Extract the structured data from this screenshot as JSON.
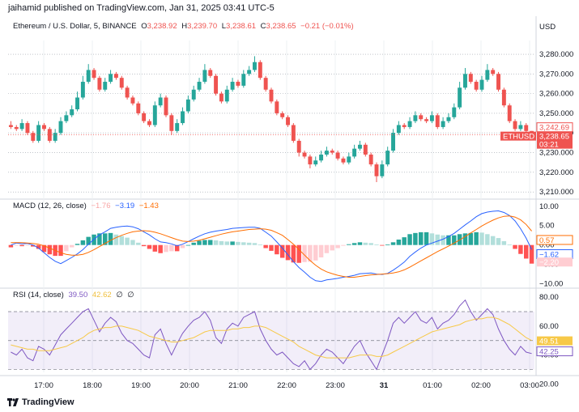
{
  "header": {
    "text": "jaihamid published on TradingView.com, Jan 31, 2025 03:41 UTC-5"
  },
  "footer": {
    "brand": "TradingView"
  },
  "price_panel": {
    "title": "Ethereum / U.S. Dollar, 5, BINANCE",
    "ohlc": [
      {
        "k": "O",
        "v": "3,238.92"
      },
      {
        "k": "H",
        "v": "3,239.70"
      },
      {
        "k": "L",
        "v": "3,238.61"
      },
      {
        "k": "C",
        "v": "3,238.65"
      }
    ],
    "change": "−0.21 (−0.01%)",
    "currency": "USD",
    "last_price_tag": "3,238.65",
    "symbol_tag": "ETHUSD",
    "countdown_tag": "03:21",
    "prev_close_tag": "3,242.69"
  },
  "macd_panel": {
    "title": "MACD (12, 26, close)",
    "values": [
      "−1.76",
      "−3.19",
      "−1.43"
    ],
    "tags": [
      "0.57",
      "−1.62",
      "−2.20"
    ]
  },
  "rsi_panel": {
    "title": "RSI (14, close)",
    "values": [
      "39.50",
      "42.62"
    ],
    "tags": [
      "49.51",
      "42.25"
    ],
    "icons": [
      "∅",
      "∅"
    ]
  },
  "colors": {
    "up": "#26a69a",
    "down": "#ef5350",
    "macd": "#2962ff",
    "signal": "#ff6d00",
    "rsi": "#7e57c2",
    "rsi_ma": "#f7c948",
    "hist_up_strong": "#26a69a",
    "hist_up_weak": "#b2dfdb",
    "hist_down_strong": "#ff5252",
    "hist_down_weak": "#ffcdd2"
  },
  "chart_data": [
    {
      "type": "candlestick",
      "title": "Ethereum / U.S. Dollar, 5, BINANCE",
      "ylabel": "USD",
      "ylim": [
        3208,
        3287
      ],
      "yticks": [
        3210,
        3220,
        3230,
        3240,
        3250,
        3260,
        3270,
        3280
      ],
      "xticks": [
        "17:00",
        "18:00",
        "19:00",
        "20:00",
        "21:00",
        "22:00",
        "23:00",
        "31",
        "01:00",
        "02:00",
        "03:00"
      ],
      "close": [
        3243,
        3242,
        3245,
        3240,
        3236,
        3244,
        3242,
        3236,
        3240,
        3246,
        3249,
        3252,
        3258,
        3266,
        3272,
        3268,
        3262,
        3266,
        3270,
        3268,
        3263,
        3258,
        3255,
        3250,
        3246,
        3244,
        3254,
        3258,
        3249,
        3241,
        3245,
        3251,
        3257,
        3262,
        3266,
        3272,
        3269,
        3260,
        3256,
        3262,
        3266,
        3264,
        3270,
        3272,
        3276,
        3268,
        3262,
        3256,
        3250,
        3248,
        3244,
        3236,
        3230,
        3228,
        3224,
        3226,
        3229,
        3231,
        3230,
        3227,
        3225,
        3228,
        3232,
        3234,
        3229,
        3224,
        3218,
        3224,
        3231,
        3240,
        3244,
        3243,
        3246,
        3249,
        3247,
        3246,
        3249,
        3243,
        3246,
        3248,
        3253,
        3263,
        3270,
        3266,
        3262,
        3267,
        3272,
        3270,
        3262,
        3254,
        3246,
        3242,
        3244,
        3241,
        3239
      ],
      "high_extra": [
        2,
        1,
        2,
        1,
        1,
        2,
        1,
        1,
        2,
        2,
        2,
        2,
        3,
        3,
        3,
        1,
        1,
        2,
        2,
        1,
        1,
        1,
        1,
        1,
        1,
        1,
        2,
        2,
        1,
        1,
        2,
        2,
        2,
        2,
        2,
        3,
        1,
        1,
        1,
        2,
        2,
        1,
        2,
        2,
        3,
        1,
        1,
        1,
        1,
        1,
        1,
        1,
        1,
        1,
        1,
        2,
        2,
        2,
        1,
        1,
        1,
        2,
        2,
        2,
        1,
        1,
        1,
        2,
        2,
        2,
        2,
        1,
        2,
        2,
        1,
        1,
        2,
        1,
        2,
        2,
        2,
        3,
        3,
        1,
        1,
        2,
        3,
        1,
        1,
        1,
        1,
        1,
        2,
        1,
        0
      ],
      "low_extra": [
        1,
        1,
        1,
        1,
        1,
        1,
        1,
        1,
        1,
        1,
        1,
        1,
        1,
        1,
        1,
        1,
        1,
        1,
        1,
        1,
        1,
        1,
        1,
        1,
        1,
        1,
        1,
        1,
        1,
        2,
        1,
        1,
        1,
        1,
        1,
        1,
        1,
        1,
        1,
        1,
        1,
        1,
        1,
        1,
        1,
        1,
        1,
        1,
        1,
        1,
        1,
        1,
        2,
        1,
        2,
        1,
        1,
        1,
        1,
        1,
        1,
        1,
        1,
        1,
        1,
        1,
        3,
        1,
        1,
        1,
        1,
        1,
        1,
        1,
        1,
        1,
        1,
        1,
        1,
        1,
        1,
        1,
        1,
        1,
        1,
        1,
        1,
        1,
        1,
        1,
        1,
        1,
        1,
        1,
        1
      ]
    },
    {
      "type": "line",
      "title": "MACD (12, 26, close)",
      "ylim": [
        -10.5,
        11
      ],
      "yticks": [
        10.0,
        5.0,
        0.0,
        -5.0,
        -10.0
      ],
      "series": [
        {
          "name": "MACD",
          "values": [
            0.0,
            0.5,
            0.3,
            0.4,
            0.0,
            -0.8,
            -2.0,
            -3.2,
            -4.2,
            -4.8,
            -4.0,
            -3.2,
            -2.3,
            -1.2,
            0.2,
            1.5,
            2.6,
            3.4,
            4.3,
            4.6,
            4.8,
            4.9,
            4.7,
            4.2,
            3.4,
            2.6,
            1.6,
            0.8,
            0.6,
            0.3,
            -0.2,
            0.2,
            0.9,
            1.6,
            2.3,
            2.9,
            3.3,
            3.6,
            3.8,
            4.0,
            4.3,
            4.4,
            4.5,
            4.6,
            4.6,
            4.3,
            3.3,
            2.3,
            0.8,
            -0.8,
            -2.5,
            -4.3,
            -5.8,
            -7.0,
            -8.3,
            -9.2,
            -9.4,
            -9.0,
            -8.8,
            -8.6,
            -8.3,
            -8.1,
            -7.8,
            -7.4,
            -7.3,
            -7.2,
            -7.5,
            -7.6,
            -7.3,
            -6.5,
            -5.5,
            -4.4,
            -2.9,
            -1.8,
            -0.8,
            0.0,
            0.5,
            1.0,
            1.5,
            2.2,
            3.0,
            4.1,
            5.2,
            6.2,
            7.3,
            8.1,
            8.5,
            8.7,
            8.8,
            8.4,
            7.6,
            6.2,
            4.2,
            1.8,
            -1.2
          ]
        },
        {
          "name": "Signal",
          "values": [
            0.6,
            0.6,
            0.6,
            0.5,
            0.4,
            0.2,
            -0.2,
            -0.8,
            -1.4,
            -2.0,
            -2.4,
            -2.6,
            -2.6,
            -2.4,
            -1.9,
            -1.2,
            -0.4,
            0.4,
            1.2,
            1.9,
            2.5,
            3.0,
            3.4,
            3.6,
            3.7,
            3.6,
            3.3,
            2.9,
            2.4,
            1.9,
            1.4,
            1.0,
            0.9,
            1.0,
            1.2,
            1.6,
            2.0,
            2.4,
            2.8,
            3.1,
            3.4,
            3.6,
            3.8,
            4.0,
            4.1,
            4.2,
            4.1,
            3.8,
            3.2,
            2.5,
            1.4,
            0.2,
            -1.2,
            -2.6,
            -4.0,
            -5.2,
            -6.2,
            -6.9,
            -7.4,
            -7.8,
            -8.1,
            -8.3,
            -8.3,
            -8.1,
            -7.9,
            -7.7,
            -7.6,
            -7.5,
            -7.4,
            -7.2,
            -6.9,
            -6.4,
            -5.7,
            -4.9,
            -4.1,
            -3.3,
            -2.5,
            -1.7,
            -1.0,
            -0.3,
            0.5,
            1.3,
            2.2,
            3.1,
            4.0,
            4.9,
            5.7,
            6.4,
            7.0,
            7.4,
            7.5,
            7.2,
            6.5,
            5.3,
            3.6
          ]
        }
      ],
      "histogram": [
        -0.6,
        -0.1,
        -0.3,
        -0.1,
        -0.4,
        -1.0,
        -1.8,
        -2.4,
        -2.8,
        -2.8,
        -1.6,
        -0.6,
        0.3,
        1.2,
        2.1,
        2.7,
        3.0,
        3.0,
        3.1,
        2.7,
        2.3,
        1.9,
        1.3,
        0.6,
        -0.3,
        -1.0,
        -1.7,
        -2.1,
        -1.8,
        -1.6,
        -1.6,
        -0.8,
        0.0,
        0.6,
        1.1,
        1.3,
        1.3,
        1.2,
        1.0,
        0.9,
        0.9,
        0.8,
        0.7,
        0.6,
        0.5,
        0.1,
        -0.8,
        -1.5,
        -2.4,
        -3.3,
        -3.9,
        -4.5,
        -4.6,
        -4.4,
        -4.3,
        -4.0,
        -3.2,
        -2.1,
        -1.4,
        -0.8,
        -0.2,
        0.2,
        0.5,
        0.7,
        0.6,
        0.5,
        0.1,
        -0.1,
        0.1,
        0.7,
        1.4,
        2.0,
        2.8,
        3.1,
        3.3,
        3.3,
        3.0,
        2.7,
        2.5,
        2.5,
        2.5,
        2.8,
        3.0,
        3.1,
        3.3,
        3.2,
        2.8,
        2.3,
        1.8,
        1.0,
        0.1,
        -1.0,
        -2.3,
        -3.5,
        -4.8
      ]
    },
    {
      "type": "line",
      "title": "RSI (14, close)",
      "ylim": [
        28,
        84
      ],
      "yticks": [
        80.0,
        60.0,
        40.0,
        20.0
      ],
      "bands": [
        70,
        50,
        30
      ],
      "series": [
        {
          "name": "RSI",
          "values": [
            42,
            40,
            44,
            38,
            36,
            46,
            44,
            40,
            47,
            54,
            58,
            62,
            66,
            70,
            72,
            64,
            56,
            62,
            66,
            63,
            55,
            50,
            48,
            44,
            40,
            38,
            54,
            58,
            48,
            40,
            48,
            55,
            60,
            64,
            66,
            70,
            64,
            52,
            48,
            58,
            62,
            60,
            66,
            68,
            70,
            58,
            50,
            44,
            40,
            42,
            38,
            34,
            32,
            36,
            30,
            34,
            40,
            44,
            42,
            38,
            34,
            40,
            46,
            50,
            42,
            36,
            30,
            40,
            50,
            62,
            66,
            62,
            66,
            70,
            64,
            62,
            66,
            58,
            62,
            64,
            68,
            74,
            78,
            70,
            64,
            68,
            72,
            68,
            58,
            50,
            44,
            40,
            46,
            42,
            41
          ]
        },
        {
          "name": "RSI MA",
          "values": [
            47,
            46,
            45,
            44,
            44,
            43,
            43,
            43,
            44,
            45,
            46,
            48,
            50,
            52,
            55,
            57,
            58,
            59,
            59,
            60,
            60,
            59,
            58,
            57,
            55,
            53,
            52,
            51,
            50,
            49,
            49,
            50,
            51,
            52,
            54,
            56,
            57,
            57,
            57,
            57,
            58,
            58,
            59,
            59,
            60,
            60,
            59,
            57,
            55,
            53,
            51,
            49,
            46,
            44,
            42,
            40,
            39,
            38,
            38,
            38,
            38,
            38,
            39,
            40,
            40,
            40,
            39,
            39,
            40,
            42,
            44,
            46,
            48,
            50,
            52,
            54,
            56,
            57,
            58,
            59,
            60,
            61,
            63,
            64,
            65,
            65,
            66,
            66,
            65,
            63,
            61,
            58,
            55,
            52,
            50
          ]
        }
      ]
    }
  ]
}
